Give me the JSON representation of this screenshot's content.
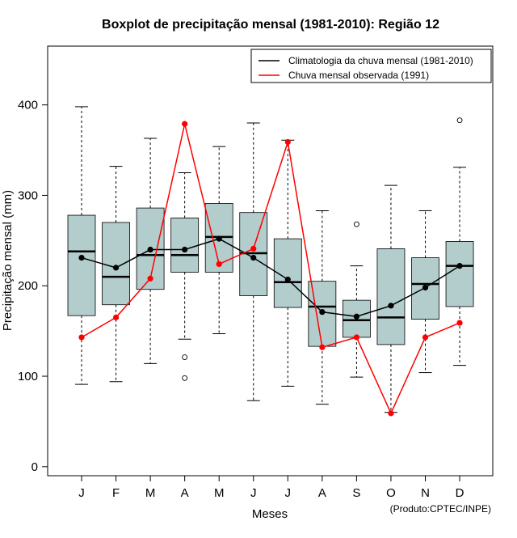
{
  "chart_data": {
    "type": "boxplot",
    "title": "Boxplot de precipitação mensal (1981-2010): Região 12",
    "xlabel": "Meses",
    "ylabel": "Precipitação mensal (mm)",
    "ylim": [
      -10,
      465
    ],
    "yticks": [
      0,
      100,
      200,
      300,
      400
    ],
    "categories": [
      "J",
      "F",
      "M",
      "A",
      "M",
      "J",
      "J",
      "A",
      "S",
      "O",
      "N",
      "D"
    ],
    "boxes": [
      {
        "whisker_low": 91,
        "q1": 167,
        "median": 238,
        "q3": 278,
        "whisker_high": 398,
        "outliers": []
      },
      {
        "whisker_low": 94,
        "q1": 179,
        "median": 210,
        "q3": 270,
        "whisker_high": 332,
        "outliers": []
      },
      {
        "whisker_low": 114,
        "q1": 196,
        "median": 234,
        "q3": 286,
        "whisker_high": 363,
        "outliers": []
      },
      {
        "whisker_low": 141,
        "q1": 215,
        "median": 234,
        "q3": 275,
        "whisker_high": 325,
        "outliers": [
          121,
          98
        ]
      },
      {
        "whisker_low": 147,
        "q1": 215,
        "median": 254,
        "q3": 291,
        "whisker_high": 354,
        "outliers": []
      },
      {
        "whisker_low": 73,
        "q1": 189,
        "median": 236,
        "q3": 281,
        "whisker_high": 380,
        "outliers": []
      },
      {
        "whisker_low": 89,
        "q1": 176,
        "median": 204,
        "q3": 252,
        "whisker_high": 361,
        "outliers": []
      },
      {
        "whisker_low": 69,
        "q1": 133,
        "median": 177,
        "q3": 205,
        "whisker_high": 283,
        "outliers": []
      },
      {
        "whisker_low": 99,
        "q1": 143,
        "median": 162,
        "q3": 184,
        "whisker_high": 222,
        "outliers": [
          268
        ]
      },
      {
        "whisker_low": 60,
        "q1": 135,
        "median": 165,
        "q3": 241,
        "whisker_high": 311,
        "outliers": []
      },
      {
        "whisker_low": 104,
        "q1": 163,
        "median": 202,
        "q3": 231,
        "whisker_high": 283,
        "outliers": []
      },
      {
        "whisker_low": 112,
        "q1": 177,
        "median": 222,
        "q3": 249,
        "whisker_high": 331,
        "outliers": [
          383
        ]
      }
    ],
    "series": [
      {
        "name": "Climatologia da chuva mensal (1981-2010)",
        "color": "#000000",
        "values": [
          231,
          220,
          240,
          240,
          252,
          231,
          207,
          171,
          166,
          178,
          198,
          222
        ]
      },
      {
        "name": "Chuva mensal observada (1991)",
        "color": "#ff0000",
        "values": [
          143,
          165,
          208,
          379,
          224,
          241,
          359,
          132,
          143,
          59,
          143,
          159
        ]
      }
    ],
    "box_color": "#b3cccc",
    "legend_position": "top-right"
  },
  "footer": {
    "credit": "(Produto:CPTEC/INPE)"
  }
}
